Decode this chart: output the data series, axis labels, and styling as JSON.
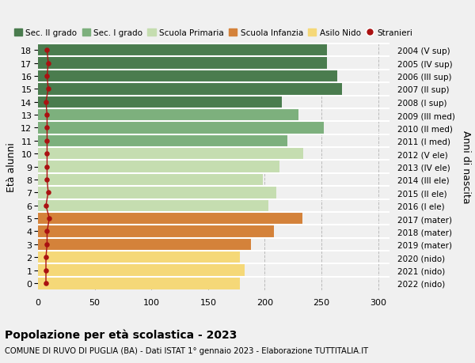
{
  "ages": [
    18,
    17,
    16,
    15,
    14,
    13,
    12,
    11,
    10,
    9,
    8,
    7,
    6,
    5,
    4,
    3,
    2,
    1,
    0
  ],
  "bar_values": [
    255,
    255,
    264,
    268,
    215,
    230,
    252,
    220,
    234,
    213,
    198,
    210,
    203,
    233,
    208,
    188,
    178,
    182,
    178
  ],
  "stranieri": [
    8,
    9,
    8,
    9,
    7,
    8,
    8,
    8,
    8,
    8,
    8,
    9,
    7,
    10,
    8,
    8,
    7,
    7,
    7
  ],
  "right_labels": [
    "2004 (V sup)",
    "2005 (IV sup)",
    "2006 (III sup)",
    "2007 (II sup)",
    "2008 (I sup)",
    "2009 (III med)",
    "2010 (II med)",
    "2011 (I med)",
    "2012 (V ele)",
    "2013 (IV ele)",
    "2014 (III ele)",
    "2015 (II ele)",
    "2016 (I ele)",
    "2017 (mater)",
    "2018 (mater)",
    "2019 (mater)",
    "2020 (nido)",
    "2021 (nido)",
    "2022 (nido)"
  ],
  "bar_colors": [
    "#4a7c4e",
    "#4a7c4e",
    "#4a7c4e",
    "#4a7c4e",
    "#4a7c4e",
    "#7db07d",
    "#7db07d",
    "#7db07d",
    "#c5ddb0",
    "#c5ddb0",
    "#c5ddb0",
    "#c5ddb0",
    "#c5ddb0",
    "#d4823a",
    "#d4823a",
    "#d4823a",
    "#f5d878",
    "#f5d878",
    "#f5d878"
  ],
  "legend_labels": [
    "Sec. II grado",
    "Sec. I grado",
    "Scuola Primaria",
    "Scuola Infanzia",
    "Asilo Nido",
    "Stranieri"
  ],
  "legend_colors": [
    "#4a7c4e",
    "#7db07d",
    "#c5ddb0",
    "#d4823a",
    "#f5d878",
    "#aa1111"
  ],
  "title_bold": "Popolazione per età scolastica - 2023",
  "subtitle": "COMUNE DI RUVO DI PUGLIA (BA) - Dati ISTAT 1° gennaio 2023 - Elaborazione TUTTITALIA.IT",
  "ylabel_left": "Età alunni",
  "ylabel_right": "Anni di nascita",
  "xlim": [
    0,
    310
  ],
  "xticks": [
    0,
    50,
    100,
    150,
    200,
    250,
    300
  ],
  "background_color": "#f0f0f0",
  "stranieri_color": "#aa1111",
  "stranieri_line_color": "#aa1111"
}
